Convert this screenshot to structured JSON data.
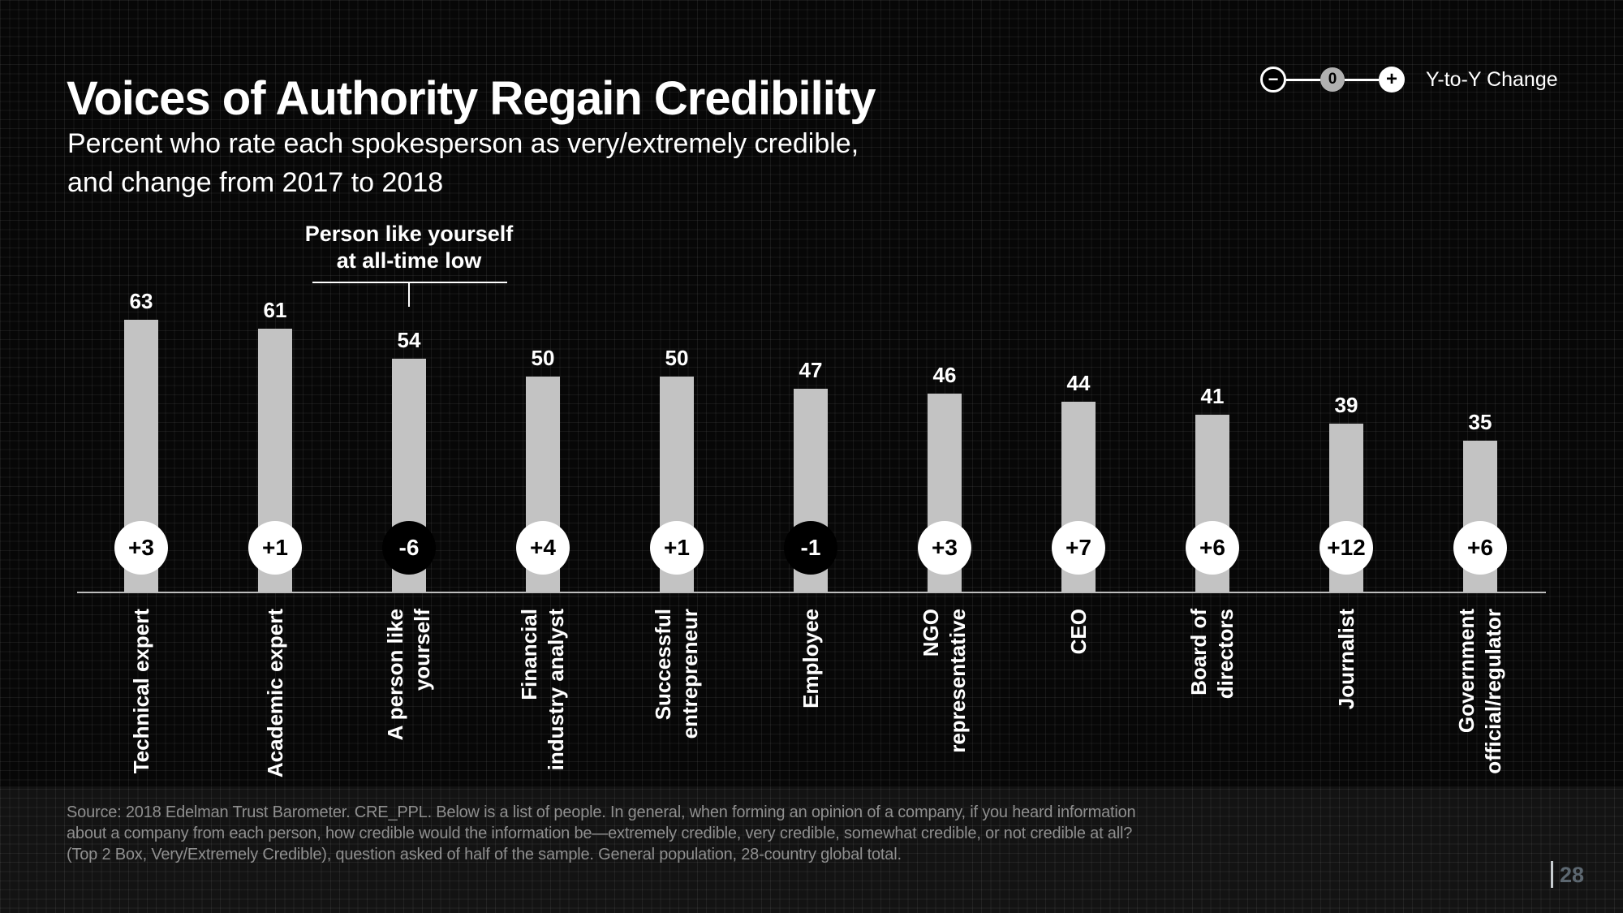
{
  "slide": {
    "title": "Voices of Authority Regain Credibility",
    "subtitle": [
      "Percent who rate each spokesperson as very/extremely credible,",
      "and change from 2017 to 2018"
    ],
    "page_number": "28"
  },
  "legend": {
    "label": "Y-to-Y Change",
    "minus": "−",
    "zero": "0",
    "plus": "+"
  },
  "annotation": {
    "line1": "Person like yourself",
    "line2": "at all-time low"
  },
  "footer": {
    "lines": [
      "Source: 2018 Edelman Trust Barometer. CRE_PPL. Below is a list of people. In general, when forming an opinion of a company, if you heard information",
      "about a company from each person, how credible would the information be—extremely credible, very credible, somewhat credible, or not credible at all?",
      "(Top 2 Box, Very/Extremely Credible), question asked of half of the sample. General population, 28-country global total."
    ]
  },
  "colors": {
    "background": "#070707",
    "bar": "#c3c3c3",
    "axis": "#bdbdbd",
    "positive_badge": "#ffffff",
    "negative_badge": "#000000",
    "badge_text_positive": "#000000",
    "badge_text_negative": "#ffffff",
    "text": "#ffffff",
    "footer_text": "#8f8f8f",
    "page_number": "#5c6770",
    "legend_zero_fill": "#b0b0b0"
  },
  "chart_data": {
    "type": "bar",
    "title": "Voices of Authority Regain Credibility",
    "subtitle": "Percent who rate each spokesperson as very/extremely credible, and change from 2017 to 2018",
    "categories": [
      "Technical expert",
      "Academic expert",
      "A person like\nyourself",
      "Financial\nindustry analyst",
      "Successful\nentrepreneur",
      "Employee",
      "NGO\nrepresentative",
      "CEO",
      "Board of\ndirectors",
      "Journalist",
      "Government\nofficial/regulator"
    ],
    "values": [
      63,
      61,
      54,
      50,
      50,
      47,
      46,
      44,
      41,
      39,
      35
    ],
    "changes": [
      "+3",
      "+1",
      "-6",
      "+4",
      "+1",
      "-1",
      "+3",
      "+7",
      "+6",
      "+12",
      "+6"
    ],
    "annotation_target": "A person like yourself",
    "ylim": [
      0,
      70
    ],
    "grid": false,
    "legend_position": "top-right"
  }
}
